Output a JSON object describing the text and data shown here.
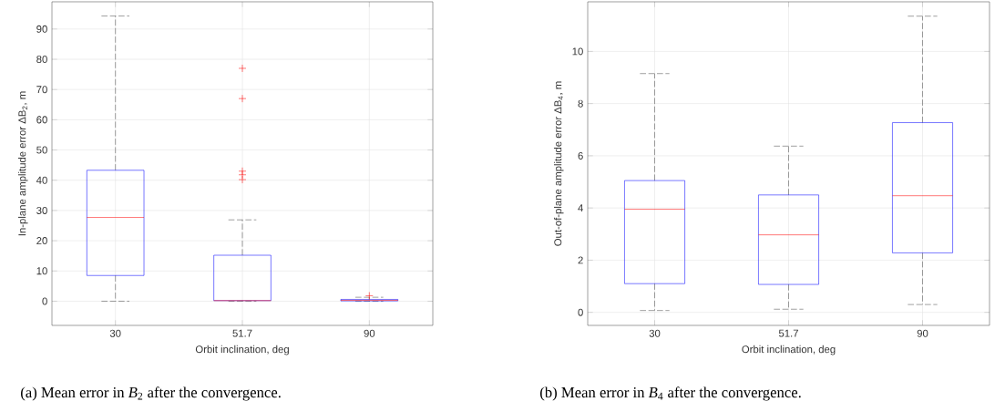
{
  "chart_data": [
    {
      "type": "box",
      "ylabel": "In-plane amplitude error ΔB$_{2}$, m",
      "xlabel": "Orbit inclination, deg",
      "categories": [
        "30",
        "51.7",
        "90"
      ],
      "color": "#0000ff",
      "grid": true,
      "ylim": [
        -8,
        99
      ],
      "yticks": [
        0,
        10,
        20,
        30,
        40,
        50,
        60,
        70,
        80,
        90
      ],
      "boxes": [
        {
          "low": 0,
          "q1": 8.5,
          "median": 27.7,
          "q3": 43.3,
          "high": 94.3
        },
        {
          "low": 0,
          "q1": 0.2,
          "median": 0.2,
          "q3": 15.2,
          "high": 26.9,
          "outliers": [
            40.2,
            41.8,
            43,
            67,
            77
          ]
        },
        {
          "low": 0,
          "q1": 0.1,
          "median": 0.3,
          "q3": 0.6,
          "high": 1.3,
          "outliers": [
            1.8
          ]
        }
      ],
      "annotations": [
        "(a) Mean error in *B*$_{2}$ after the convergence."
      ]
    },
    {
      "type": "box",
      "ylabel": "Out-of-plane amplitude error ΔB$_{4}$, m",
      "xlabel": "Orbit inclination, deg",
      "categories": [
        "30",
        "51.7",
        "90"
      ],
      "color": "#0000ff",
      "grid": true,
      "ylim": [
        -0.5,
        11.9
      ],
      "yticks": [
        0,
        2,
        4,
        6,
        8,
        10
      ],
      "boxes": [
        {
          "low": 0.07,
          "q1": 1.1,
          "median": 3.95,
          "q3": 5.05,
          "high": 9.15
        },
        {
          "low": 0.12,
          "q1": 1.07,
          "median": 2.97,
          "q3": 4.5,
          "high": 6.37
        },
        {
          "low": 0.3,
          "q1": 2.28,
          "median": 4.47,
          "q3": 7.27,
          "high": 11.35
        }
      ],
      "annotations": [
        "(b) Mean error in *B*$_{4}$ after the convergence."
      ]
    }
  ]
}
